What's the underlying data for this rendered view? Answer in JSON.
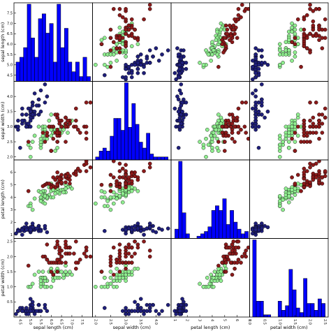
{
  "chart_data": {
    "type": "scatter-matrix",
    "title": "",
    "variables": [
      "sepal length (cm)",
      "sepal width (cm)",
      "petal length (cm)",
      "petal width (cm)"
    ],
    "ranges": [
      [
        4.2,
        8.0
      ],
      [
        1.9,
        4.5
      ],
      [
        0.7,
        7.0
      ],
      [
        0.0,
        2.6
      ]
    ],
    "ticks": [
      [
        "4.5",
        "5.0",
        "5.5",
        "6.0",
        "6.5",
        "7.0",
        "7.5"
      ],
      [
        "2.0",
        "2.5",
        "3.0",
        "3.5",
        "4.0"
      ],
      [
        "1",
        "2",
        "3",
        "4",
        "5",
        "6",
        "7"
      ],
      [
        "0.0",
        "0.5",
        "1.0",
        "1.5",
        "2.0",
        "2.5"
      ]
    ],
    "diagonal": "histogram",
    "histogram_bins": 20,
    "grid": false,
    "legend": "none",
    "colors": {
      "setosa": "#1f1f7a",
      "versicolor": "#90ee90",
      "virginica": "#8b1a1a",
      "histogram": "#0000ff"
    },
    "series": [
      {
        "values": [
          [
            5.1,
            3.5,
            1.4,
            0.2
          ],
          [
            4.9,
            3.0,
            1.4,
            0.2
          ],
          [
            4.7,
            3.2,
            1.3,
            0.2
          ],
          [
            4.6,
            3.1,
            1.5,
            0.2
          ],
          [
            5.0,
            3.6,
            1.4,
            0.2
          ],
          [
            5.4,
            3.9,
            1.7,
            0.4
          ],
          [
            4.6,
            3.4,
            1.4,
            0.3
          ],
          [
            5.0,
            3.4,
            1.5,
            0.2
          ],
          [
            4.4,
            2.9,
            1.4,
            0.2
          ],
          [
            4.9,
            3.1,
            1.5,
            0.1
          ],
          [
            5.4,
            3.7,
            1.5,
            0.2
          ],
          [
            4.8,
            3.4,
            1.6,
            0.2
          ],
          [
            4.8,
            3.0,
            1.4,
            0.1
          ],
          [
            4.3,
            3.0,
            1.1,
            0.1
          ],
          [
            5.8,
            4.0,
            1.2,
            0.2
          ],
          [
            5.7,
            4.4,
            1.5,
            0.4
          ],
          [
            5.4,
            3.9,
            1.3,
            0.4
          ],
          [
            5.1,
            3.5,
            1.4,
            0.3
          ],
          [
            5.7,
            3.8,
            1.7,
            0.3
          ],
          [
            5.1,
            3.8,
            1.5,
            0.3
          ],
          [
            5.4,
            3.4,
            1.7,
            0.2
          ],
          [
            5.1,
            3.7,
            1.5,
            0.4
          ],
          [
            4.6,
            3.6,
            1.0,
            0.2
          ],
          [
            5.1,
            3.3,
            1.7,
            0.5
          ],
          [
            4.8,
            3.4,
            1.9,
            0.2
          ],
          [
            5.0,
            3.0,
            1.6,
            0.2
          ],
          [
            5.0,
            3.4,
            1.6,
            0.4
          ],
          [
            5.2,
            3.5,
            1.5,
            0.2
          ],
          [
            5.2,
            3.4,
            1.4,
            0.2
          ],
          [
            4.7,
            3.2,
            1.6,
            0.2
          ],
          [
            4.8,
            3.1,
            1.6,
            0.2
          ],
          [
            5.4,
            3.4,
            1.5,
            0.4
          ],
          [
            5.2,
            4.1,
            1.5,
            0.1
          ],
          [
            5.5,
            4.2,
            1.4,
            0.2
          ],
          [
            4.9,
            3.1,
            1.5,
            0.2
          ],
          [
            5.0,
            3.2,
            1.2,
            0.2
          ],
          [
            5.5,
            3.5,
            1.3,
            0.2
          ],
          [
            4.9,
            3.6,
            1.4,
            0.1
          ],
          [
            4.4,
            3.0,
            1.3,
            0.2
          ],
          [
            5.1,
            3.4,
            1.5,
            0.2
          ],
          [
            5.0,
            3.5,
            1.3,
            0.3
          ],
          [
            4.5,
            2.3,
            1.3,
            0.3
          ],
          [
            4.4,
            3.2,
            1.3,
            0.2
          ],
          [
            5.0,
            3.5,
            1.6,
            0.6
          ],
          [
            5.1,
            3.8,
            1.9,
            0.4
          ],
          [
            4.8,
            3.0,
            1.4,
            0.3
          ],
          [
            5.1,
            3.8,
            1.6,
            0.2
          ],
          [
            4.6,
            3.2,
            1.4,
            0.2
          ],
          [
            5.3,
            3.7,
            1.5,
            0.2
          ],
          [
            5.0,
            3.3,
            1.4,
            0.2
          ]
        ]
      },
      {
        "values": [
          [
            7.0,
            3.2,
            4.7,
            1.4
          ],
          [
            6.4,
            3.2,
            4.5,
            1.5
          ],
          [
            6.9,
            3.1,
            4.9,
            1.5
          ],
          [
            5.5,
            2.3,
            4.0,
            1.3
          ],
          [
            6.5,
            2.8,
            4.6,
            1.5
          ],
          [
            5.7,
            2.8,
            4.5,
            1.3
          ],
          [
            6.3,
            3.3,
            4.7,
            1.6
          ],
          [
            4.9,
            2.4,
            3.3,
            1.0
          ],
          [
            6.6,
            2.9,
            4.6,
            1.3
          ],
          [
            5.2,
            2.7,
            3.9,
            1.4
          ],
          [
            5.0,
            2.0,
            3.5,
            1.0
          ],
          [
            5.9,
            3.0,
            4.2,
            1.5
          ],
          [
            6.0,
            2.2,
            4.0,
            1.0
          ],
          [
            6.1,
            2.9,
            4.7,
            1.4
          ],
          [
            5.6,
            2.9,
            3.6,
            1.3
          ],
          [
            6.7,
            3.1,
            4.4,
            1.4
          ],
          [
            5.6,
            3.0,
            4.5,
            1.5
          ],
          [
            5.8,
            2.7,
            4.1,
            1.0
          ],
          [
            6.2,
            2.2,
            4.5,
            1.5
          ],
          [
            5.6,
            2.5,
            3.9,
            1.1
          ],
          [
            5.9,
            3.2,
            4.8,
            1.8
          ],
          [
            6.1,
            2.8,
            4.0,
            1.3
          ],
          [
            6.3,
            2.5,
            4.9,
            1.5
          ],
          [
            6.1,
            2.8,
            4.7,
            1.2
          ],
          [
            6.4,
            2.9,
            4.3,
            1.3
          ],
          [
            6.6,
            3.0,
            4.4,
            1.4
          ],
          [
            6.8,
            2.8,
            4.8,
            1.4
          ],
          [
            6.7,
            3.0,
            5.0,
            1.7
          ],
          [
            6.0,
            2.9,
            4.5,
            1.5
          ],
          [
            5.7,
            2.6,
            3.5,
            1.0
          ],
          [
            5.5,
            2.4,
            3.8,
            1.1
          ],
          [
            5.5,
            2.4,
            3.7,
            1.0
          ],
          [
            5.8,
            2.7,
            3.9,
            1.2
          ],
          [
            6.0,
            2.7,
            5.1,
            1.6
          ],
          [
            5.4,
            3.0,
            4.5,
            1.5
          ],
          [
            6.0,
            3.4,
            4.5,
            1.6
          ],
          [
            6.7,
            3.1,
            4.7,
            1.5
          ],
          [
            6.3,
            2.3,
            4.4,
            1.3
          ],
          [
            5.6,
            3.0,
            4.1,
            1.3
          ],
          [
            5.5,
            2.5,
            4.0,
            1.3
          ],
          [
            5.5,
            2.6,
            4.4,
            1.2
          ],
          [
            6.1,
            3.0,
            4.6,
            1.4
          ],
          [
            5.8,
            2.6,
            4.0,
            1.2
          ],
          [
            5.0,
            2.3,
            3.3,
            1.0
          ],
          [
            5.6,
            2.7,
            4.2,
            1.3
          ],
          [
            5.7,
            3.0,
            4.2,
            1.2
          ],
          [
            5.7,
            2.9,
            4.2,
            1.3
          ],
          [
            6.2,
            2.9,
            4.3,
            1.3
          ],
          [
            5.1,
            2.5,
            3.0,
            1.1
          ],
          [
            5.7,
            2.8,
            4.1,
            1.3
          ]
        ]
      },
      {
        "values": [
          [
            6.3,
            3.3,
            6.0,
            2.5
          ],
          [
            5.8,
            2.7,
            5.1,
            1.9
          ],
          [
            7.1,
            3.0,
            5.9,
            2.1
          ],
          [
            6.3,
            2.9,
            5.6,
            1.8
          ],
          [
            6.5,
            3.0,
            5.8,
            2.2
          ],
          [
            7.6,
            3.0,
            6.6,
            2.1
          ],
          [
            4.9,
            2.5,
            4.5,
            1.7
          ],
          [
            7.3,
            2.9,
            6.3,
            1.8
          ],
          [
            6.7,
            2.5,
            5.8,
            1.8
          ],
          [
            7.2,
            3.6,
            6.1,
            2.5
          ],
          [
            6.5,
            3.2,
            5.1,
            2.0
          ],
          [
            6.4,
            2.7,
            5.3,
            1.9
          ],
          [
            6.8,
            3.0,
            5.5,
            2.1
          ],
          [
            5.7,
            2.5,
            5.0,
            2.0
          ],
          [
            5.8,
            2.8,
            5.1,
            2.4
          ],
          [
            6.4,
            3.2,
            5.3,
            2.3
          ],
          [
            6.5,
            3.0,
            5.5,
            1.8
          ],
          [
            7.7,
            3.8,
            6.7,
            2.2
          ],
          [
            7.7,
            2.6,
            6.9,
            2.3
          ],
          [
            6.0,
            2.2,
            5.0,
            1.5
          ],
          [
            6.9,
            3.2,
            5.7,
            2.3
          ],
          [
            5.6,
            2.8,
            4.9,
            2.0
          ],
          [
            7.7,
            2.8,
            6.7,
            2.0
          ],
          [
            6.3,
            2.7,
            4.9,
            1.8
          ],
          [
            6.7,
            3.3,
            5.7,
            2.1
          ],
          [
            7.2,
            3.2,
            6.0,
            1.8
          ],
          [
            6.2,
            2.8,
            4.8,
            1.8
          ],
          [
            6.1,
            3.0,
            4.9,
            1.8
          ],
          [
            6.4,
            2.8,
            5.6,
            2.1
          ],
          [
            7.2,
            3.0,
            5.8,
            1.6
          ],
          [
            7.4,
            2.8,
            6.1,
            1.9
          ],
          [
            7.9,
            3.8,
            6.4,
            2.0
          ],
          [
            6.4,
            2.8,
            5.6,
            2.2
          ],
          [
            6.3,
            2.8,
            5.1,
            1.5
          ],
          [
            6.1,
            2.6,
            5.6,
            1.4
          ],
          [
            7.7,
            3.0,
            6.1,
            2.3
          ],
          [
            6.3,
            3.4,
            5.6,
            2.4
          ],
          [
            6.4,
            3.1,
            5.5,
            1.8
          ],
          [
            6.0,
            3.0,
            4.8,
            1.8
          ],
          [
            6.9,
            3.1,
            5.4,
            2.1
          ],
          [
            6.7,
            3.1,
            5.6,
            2.4
          ],
          [
            6.9,
            3.1,
            5.1,
            2.3
          ],
          [
            5.8,
            2.7,
            5.1,
            1.9
          ],
          [
            6.8,
            3.2,
            5.9,
            2.3
          ],
          [
            6.7,
            3.3,
            5.7,
            2.5
          ],
          [
            6.7,
            3.0,
            5.2,
            2.3
          ],
          [
            6.3,
            2.5,
            5.0,
            1.9
          ],
          [
            6.5,
            3.0,
            5.2,
            2.0
          ],
          [
            6.2,
            3.4,
            5.4,
            2.3
          ],
          [
            5.9,
            3.0,
            5.1,
            1.8
          ]
        ]
      }
    ]
  }
}
